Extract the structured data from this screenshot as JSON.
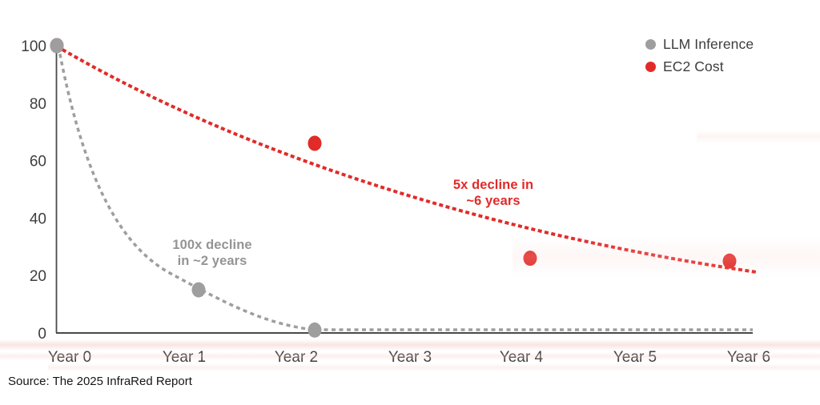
{
  "chart_data": {
    "type": "scatter",
    "title": "",
    "xlabel": "",
    "ylabel": "",
    "x_categories": [
      "Year 0",
      "Year 1",
      "Year 2",
      "Year 3",
      "Year 4",
      "Year 5",
      "Year 6"
    ],
    "y_ticks": [
      100,
      80,
      60,
      40,
      20,
      0
    ],
    "ylim": [
      0,
      100
    ],
    "grid": false,
    "legend_position": "top-right",
    "series": [
      {
        "name": "LLM Inference",
        "color": "#9e9e9e",
        "marker": "circle",
        "line_style": "dashed",
        "points": [
          {
            "category": "Year 0",
            "value": 100
          },
          {
            "category": "Year 1",
            "value": 15
          },
          {
            "category": "Year 2",
            "value": 1
          }
        ],
        "trend": "dashed exponential decay from 100 at Year 0 to ~1 by Year 2, then flat near 0 through Year 6"
      },
      {
        "name": "EC2 Cost",
        "color": "#e12b28",
        "marker": "circle",
        "line_style": "dashed",
        "points": [
          {
            "category": "Year 0",
            "value": 100
          },
          {
            "category": "Year 2",
            "value": 66
          },
          {
            "category": "Year 4",
            "value": 26
          },
          {
            "category": "Year 6",
            "value": 25
          }
        ],
        "trend": "dashed exponential decay from 100 at Year 0 to ~21 at Year 6"
      }
    ],
    "annotations": [
      {
        "series": "LLM Inference",
        "text": "100x decline in ~2 years",
        "color": "#949494"
      },
      {
        "series": "EC2 Cost",
        "text": "5x decline in ~6 years",
        "color": "#e12b28"
      }
    ]
  },
  "legend": {
    "items": [
      {
        "label": "LLM Inference",
        "color": "#9e9e9e",
        "icon": "gray-dot-icon"
      },
      {
        "label": "EC2 Cost",
        "color": "#e12b28",
        "icon": "red-dot-icon"
      }
    ]
  },
  "annotations": {
    "llm": {
      "line1": "100x decline",
      "line2": "in ~2 years"
    },
    "ec2": {
      "line1": "5x decline in",
      "line2": "~6 years"
    }
  },
  "source": {
    "text": "Source: The 2025 InfraRed Report"
  },
  "colors": {
    "ec2_red": "#e12b28",
    "llm_gray": "#9e9e9e",
    "axis": "#4a4a4a",
    "tick_text": "#3e3e3e",
    "background": "#ffffff"
  }
}
